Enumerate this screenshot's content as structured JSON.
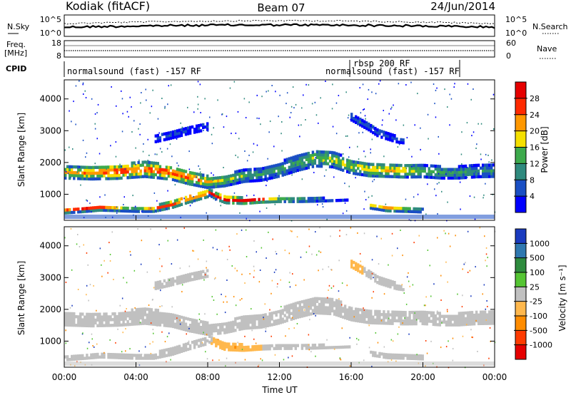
{
  "header": {
    "title": "Kodiak (fitACF)",
    "beam": "Beam 07",
    "date": "24/Jun/2014"
  },
  "top_panels": {
    "nsky": {
      "left_label": "N.Sky",
      "right_label": "N.Search",
      "left_ticks": [
        "10^5",
        "10^0"
      ],
      "right_ticks": [
        "10^5",
        "10^0"
      ]
    },
    "freq": {
      "left_label_1": "Freq.",
      "left_label_2": "[MHz]",
      "right_label": "Nave",
      "left_ticks": [
        "18",
        "8"
      ],
      "right_ticks": [
        "60",
        "0"
      ]
    },
    "cpid": {
      "label": "CPID",
      "segments": [
        {
          "text": "normalsound (fast) -157 RF",
          "start_hour": 0.0,
          "end_hour": 16.0
        },
        {
          "text": "rbsp 200 RF",
          "start_hour": 16.0,
          "end_hour": 21.8
        },
        {
          "text": "normalsound (fast) -157 RF",
          "start_hour": 16.0,
          "end_hour": 21.8
        }
      ]
    }
  },
  "x_axis": {
    "label": "Time UT",
    "ticks": [
      "00:00",
      "04:00",
      "08:00",
      "12:00",
      "16:00",
      "20:00",
      "00:00"
    ]
  },
  "chart_data": [
    {
      "type": "heatmap",
      "name": "power",
      "xlabel": "Time UT",
      "ylabel": "Slant Range [km]",
      "xlim": [
        0,
        24
      ],
      "ylim": [
        180,
        4600
      ],
      "y_ticks": [
        1000,
        2000,
        3000,
        4000
      ],
      "colorbar": {
        "label": "Power [dB]",
        "ticks": [
          "4",
          "8",
          "12",
          "16",
          "20",
          "24",
          "28"
        ],
        "colors": [
          "#0000ff",
          "#1a4fc4",
          "#2f8a7e",
          "#3daa4c",
          "#f5e000",
          "#ff9800",
          "#ff2a00",
          "#e60000"
        ]
      },
      "bands": [
        {
          "hours": [
            0,
            1.5,
            3,
            4.5,
            6,
            7,
            8,
            9,
            10,
            11,
            12,
            13,
            14,
            15,
            16,
            17,
            18,
            19,
            20,
            21,
            22,
            23,
            24
          ],
          "range_km": [
            1650,
            1640,
            1680,
            1750,
            1650,
            1480,
            1350,
            1400,
            1550,
            1600,
            1750,
            1950,
            2100,
            2050,
            1850,
            1750,
            1720,
            1700,
            1700,
            1650,
            1650,
            1700,
            1700
          ],
          "half_width_km": [
            180,
            200,
            220,
            230,
            220,
            200,
            180,
            170,
            190,
            200,
            220,
            240,
            250,
            230,
            220,
            210,
            200,
            200,
            190,
            180,
            180,
            190,
            180
          ],
          "level": [
            0.6,
            0.7,
            0.8,
            0.75,
            0.8,
            0.75,
            0.6,
            0.5,
            0.4,
            0.35,
            0.35,
            0.4,
            0.45,
            0.5,
            0.5,
            0.55,
            0.6,
            0.55,
            0.45,
            0.4,
            0.35,
            0.35,
            0.3
          ]
        },
        {
          "hours": [
            8,
            8.5,
            9,
            9.5,
            10,
            10.5,
            11,
            11.5,
            12,
            13,
            14,
            15,
            16
          ],
          "range_km": [
            1050,
            900,
            800,
            780,
            760,
            770,
            780,
            780,
            780,
            780,
            790,
            800,
            820
          ],
          "half_width_km": [
            90,
            100,
            110,
            100,
            90,
            80,
            70,
            60,
            50,
            50,
            50,
            40,
            40
          ],
          "level": [
            0.75,
            0.85,
            0.95,
            0.98,
            0.95,
            0.95,
            0.9,
            0.85,
            0.8,
            0.7,
            0.55,
            0.4,
            0.3
          ]
        },
        {
          "hours": [
            0,
            1,
            2,
            3,
            4,
            5,
            6,
            7,
            8
          ],
          "range_km": [
            450,
            500,
            550,
            520,
            480,
            500,
            650,
            850,
            1000
          ],
          "half_width_km": [
            80,
            90,
            90,
            80,
            60,
            80,
            110,
            130,
            120
          ],
          "level": [
            0.7,
            0.8,
            0.75,
            0.55,
            0.45,
            0.7,
            0.8,
            0.8,
            0.75
          ]
        },
        {
          "hours": [
            16,
            16.5,
            17,
            17.5,
            18,
            18.5,
            19
          ],
          "range_km": [
            3400,
            3250,
            3100,
            2900,
            2800,
            2700,
            2650
          ],
          "half_width_km": [
            100,
            110,
            120,
            110,
            100,
            90,
            80
          ],
          "level": [
            0.2,
            0.25,
            0.2,
            0.2,
            0.15,
            0.12,
            0.1
          ]
        },
        {
          "hours": [
            5,
            6,
            7,
            8
          ],
          "range_km": [
            2700,
            2850,
            3000,
            3100
          ],
          "half_width_km": [
            100,
            120,
            120,
            100
          ],
          "level": [
            0.15,
            0.2,
            0.15,
            0.1
          ]
        },
        {
          "hours": [
            17,
            18,
            19,
            20
          ],
          "range_km": [
            600,
            520,
            480,
            450
          ],
          "half_width_km": [
            70,
            80,
            60,
            50
          ],
          "level": [
            0.55,
            0.7,
            0.6,
            0.45
          ]
        }
      ]
    },
    {
      "type": "heatmap",
      "name": "velocity",
      "xlabel": "Time UT",
      "ylabel": "Slant Range [km]",
      "xlim": [
        0,
        24
      ],
      "ylim": [
        180,
        4600
      ],
      "y_ticks": [
        1000,
        2000,
        3000,
        4000
      ],
      "colorbar": {
        "label": "Velocity [m s⁻¹]",
        "ticks": [
          "1000",
          "500",
          "100",
          "25",
          "-25",
          "-100",
          "-500",
          "-1000"
        ],
        "colors": [
          "#1a3bbf",
          "#2f78b0",
          "#2e8b3e",
          "#55c533",
          "#c0c0c0",
          "#ffb84d",
          "#ff8c00",
          "#ff3b00",
          "#e60000"
        ]
      },
      "bands": [
        {
          "hours": [
            0,
            1.5,
            3,
            4.5,
            6,
            7,
            8,
            9,
            10,
            11,
            12,
            13,
            14,
            15,
            16,
            17,
            18,
            19,
            20,
            21,
            22,
            23,
            24
          ],
          "range_km": [
            1650,
            1640,
            1680,
            1750,
            1650,
            1480,
            1350,
            1400,
            1550,
            1600,
            1750,
            1950,
            2100,
            2050,
            1850,
            1750,
            1720,
            1700,
            1700,
            1650,
            1650,
            1700,
            1700
          ],
          "half_width_km": [
            180,
            200,
            220,
            230,
            220,
            200,
            180,
            170,
            190,
            200,
            220,
            240,
            250,
            230,
            220,
            210,
            200,
            200,
            190,
            180,
            180,
            190,
            180
          ],
          "level": [
            0.5,
            0.5,
            0.5,
            0.5,
            0.5,
            0.5,
            0.5,
            0.5,
            0.5,
            0.5,
            0.5,
            0.5,
            0.5,
            0.5,
            0.5,
            0.5,
            0.5,
            0.5,
            0.5,
            0.5,
            0.5,
            0.5,
            0.5
          ]
        },
        {
          "hours": [
            8,
            8.5,
            9,
            9.5,
            10,
            10.5,
            11,
            11.5,
            12,
            13,
            14,
            15,
            16
          ],
          "range_km": [
            1050,
            900,
            800,
            780,
            760,
            770,
            780,
            780,
            780,
            780,
            790,
            800,
            820
          ],
          "half_width_km": [
            90,
            100,
            110,
            100,
            90,
            80,
            70,
            60,
            50,
            50,
            50,
            40,
            40
          ],
          "level": [
            0.5,
            0.62,
            0.65,
            0.66,
            0.64,
            0.62,
            0.55,
            0.5,
            0.5,
            0.5,
            0.5,
            0.5,
            0.5
          ]
        },
        {
          "hours": [
            0,
            1,
            2,
            3,
            4,
            5,
            6,
            7,
            8
          ],
          "range_km": [
            450,
            500,
            550,
            520,
            480,
            500,
            650,
            850,
            1000
          ],
          "half_width_km": [
            80,
            90,
            90,
            80,
            60,
            80,
            110,
            130,
            120
          ],
          "level": [
            0.5,
            0.5,
            0.5,
            0.5,
            0.5,
            0.5,
            0.5,
            0.5,
            0.5
          ]
        },
        {
          "hours": [
            16,
            16.5,
            17,
            17.5,
            18,
            18.5,
            19
          ],
          "range_km": [
            3400,
            3250,
            3100,
            2900,
            2800,
            2700,
            2650
          ],
          "half_width_km": [
            100,
            110,
            120,
            110,
            100,
            90,
            80
          ],
          "level": [
            0.62,
            0.6,
            0.5,
            0.5,
            0.5,
            0.5,
            0.5
          ]
        },
        {
          "hours": [
            5,
            6,
            7,
            8
          ],
          "range_km": [
            2700,
            2850,
            3000,
            3100
          ],
          "half_width_km": [
            100,
            120,
            120,
            100
          ],
          "level": [
            0.5,
            0.5,
            0.5,
            0.5
          ]
        },
        {
          "hours": [
            17,
            18,
            19,
            20
          ],
          "range_km": [
            600,
            520,
            480,
            450
          ],
          "half_width_km": [
            70,
            80,
            60,
            50
          ],
          "level": [
            0.5,
            0.5,
            0.5,
            0.5
          ]
        }
      ]
    }
  ]
}
